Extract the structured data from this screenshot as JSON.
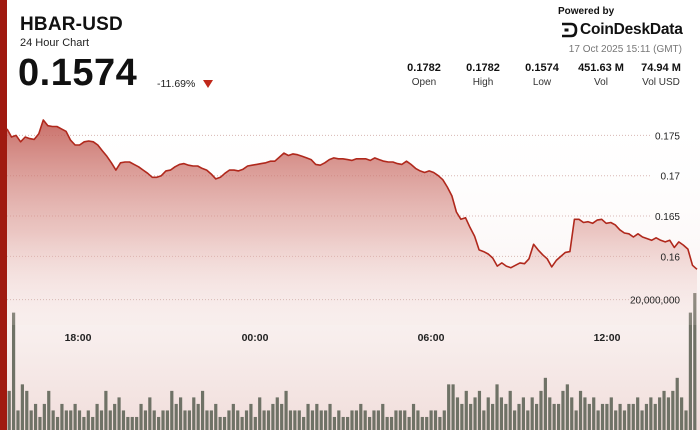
{
  "header": {
    "ticker": "HBAR-USD",
    "subtitle": "24 Hour Chart",
    "price": "0.1574",
    "change": "-11.69%"
  },
  "branding": {
    "powered_by": "Powered by",
    "name": "CoinDeskData",
    "timestamp": "17 Oct 2025 15:11 (GMT)"
  },
  "stats": [
    {
      "value": "0.1782",
      "label": "Open"
    },
    {
      "value": "0.1782",
      "label": "High"
    },
    {
      "value": "0.1574",
      "label": "Low"
    },
    {
      "value": "451.63 M",
      "label": "Vol"
    },
    {
      "value": "74.94 M",
      "label": "Vol USD"
    }
  ],
  "colors": {
    "accent": "#a01a10",
    "line": "#b0281c",
    "volume": "#6f7266",
    "down_arrow": "#c0281a"
  },
  "chart_data": {
    "type": "area",
    "title": "",
    "xlabel": "",
    "ylabel": "",
    "x_tick_labels": [
      "18:00",
      "00:00",
      "06:00",
      "12:00"
    ],
    "y_tick_labels": [
      "0.175",
      "0.17",
      "0.165",
      "0.16"
    ],
    "y_ticks": [
      0.175,
      0.17,
      0.165,
      0.16
    ],
    "ylim": [
      0.1515,
      0.18
    ],
    "volume_tick_label": "20,000,000",
    "volume_tick": 20000000,
    "volume_max": 23000000,
    "grid": true,
    "price_series": [
      0.1758,
      0.1748,
      0.175,
      0.1742,
      0.1748,
      0.1746,
      0.1745,
      0.1752,
      0.1769,
      0.1762,
      0.1761,
      0.1761,
      0.1758,
      0.1755,
      0.1744,
      0.1738,
      0.1738,
      0.1742,
      0.1743,
      0.1742,
      0.1738,
      0.1731,
      0.1724,
      0.1716,
      0.1707,
      0.1716,
      0.1717,
      0.1717,
      0.1714,
      0.1711,
      0.1707,
      0.1703,
      0.1698,
      0.1698,
      0.17,
      0.1706,
      0.1707,
      0.1711,
      0.1714,
      0.1715,
      0.1713,
      0.1712,
      0.1712,
      0.1709,
      0.1707,
      0.1702,
      0.1696,
      0.1698,
      0.1703,
      0.1707,
      0.1707,
      0.1706,
      0.1708,
      0.1712,
      0.1713,
      0.1714,
      0.1715,
      0.1716,
      0.1718,
      0.1718,
      0.1723,
      0.1728,
      0.1725,
      0.1727,
      0.1726,
      0.1724,
      0.1722,
      0.172,
      0.1714,
      0.1713,
      0.1716,
      0.172,
      0.1722,
      0.1721,
      0.1721,
      0.172,
      0.1719,
      0.1721,
      0.1721,
      0.1721,
      0.1719,
      0.1722,
      0.172,
      0.1718,
      0.1717,
      0.1717,
      0.1715,
      0.1714,
      0.1718,
      0.1714,
      0.1709,
      0.1706,
      0.1704,
      0.1706,
      0.1704,
      0.17,
      0.1695,
      0.1686,
      0.1675,
      0.1655,
      0.1646,
      0.1648,
      0.1636,
      0.1625,
      0.1608,
      0.1606,
      0.1603,
      0.1598,
      0.1588,
      0.1592,
      0.1588,
      0.1586,
      0.1589,
      0.1592,
      0.1591,
      0.1597,
      0.1615,
      0.1608,
      0.1602,
      0.1597,
      0.1587,
      0.1595,
      0.16,
      0.1605,
      0.1606,
      0.1646,
      0.1646,
      0.1642,
      0.1643,
      0.1641,
      0.1645,
      0.1646,
      0.1641,
      0.1642,
      0.1639,
      0.1633,
      0.1629,
      0.1628,
      0.1624,
      0.1628,
      0.1624,
      0.1622,
      0.162,
      0.1623,
      0.162,
      0.1618,
      0.162,
      0.1611,
      0.1618,
      0.1614,
      0.1609,
      0.1589,
      0.1584
    ],
    "volume_series": [
      6,
      18,
      3,
      7,
      6,
      3,
      4,
      2,
      4,
      6,
      3,
      2,
      4,
      3,
      3,
      4,
      3,
      2,
      3,
      2,
      4,
      3,
      6,
      3,
      4,
      5,
      3,
      2,
      2,
      2,
      4,
      3,
      5,
      3,
      2,
      3,
      3,
      6,
      4,
      5,
      3,
      3,
      5,
      4,
      6,
      3,
      3,
      4,
      2,
      2,
      3,
      4,
      3,
      2,
      3,
      4,
      2,
      5,
      3,
      3,
      4,
      5,
      4,
      6,
      3,
      3,
      3,
      2,
      4,
      3,
      4,
      3,
      3,
      4,
      2,
      3,
      2,
      2,
      3,
      3,
      4,
      3,
      2,
      3,
      3,
      4,
      2,
      2,
      3,
      3,
      3,
      2,
      4,
      3,
      2,
      2,
      3,
      3,
      2,
      3,
      7,
      7,
      5,
      4,
      6,
      4,
      5,
      6,
      3,
      5,
      4,
      7,
      5,
      4,
      6,
      3,
      4,
      5,
      3,
      5,
      4,
      6,
      8,
      5,
      4,
      4,
      6,
      7,
      5,
      3,
      6,
      5,
      4,
      5,
      3,
      4,
      4,
      5,
      3,
      4,
      3,
      4,
      4,
      5,
      3,
      4,
      5,
      4,
      5,
      6,
      5,
      6,
      8,
      5,
      3,
      18,
      21
    ]
  }
}
